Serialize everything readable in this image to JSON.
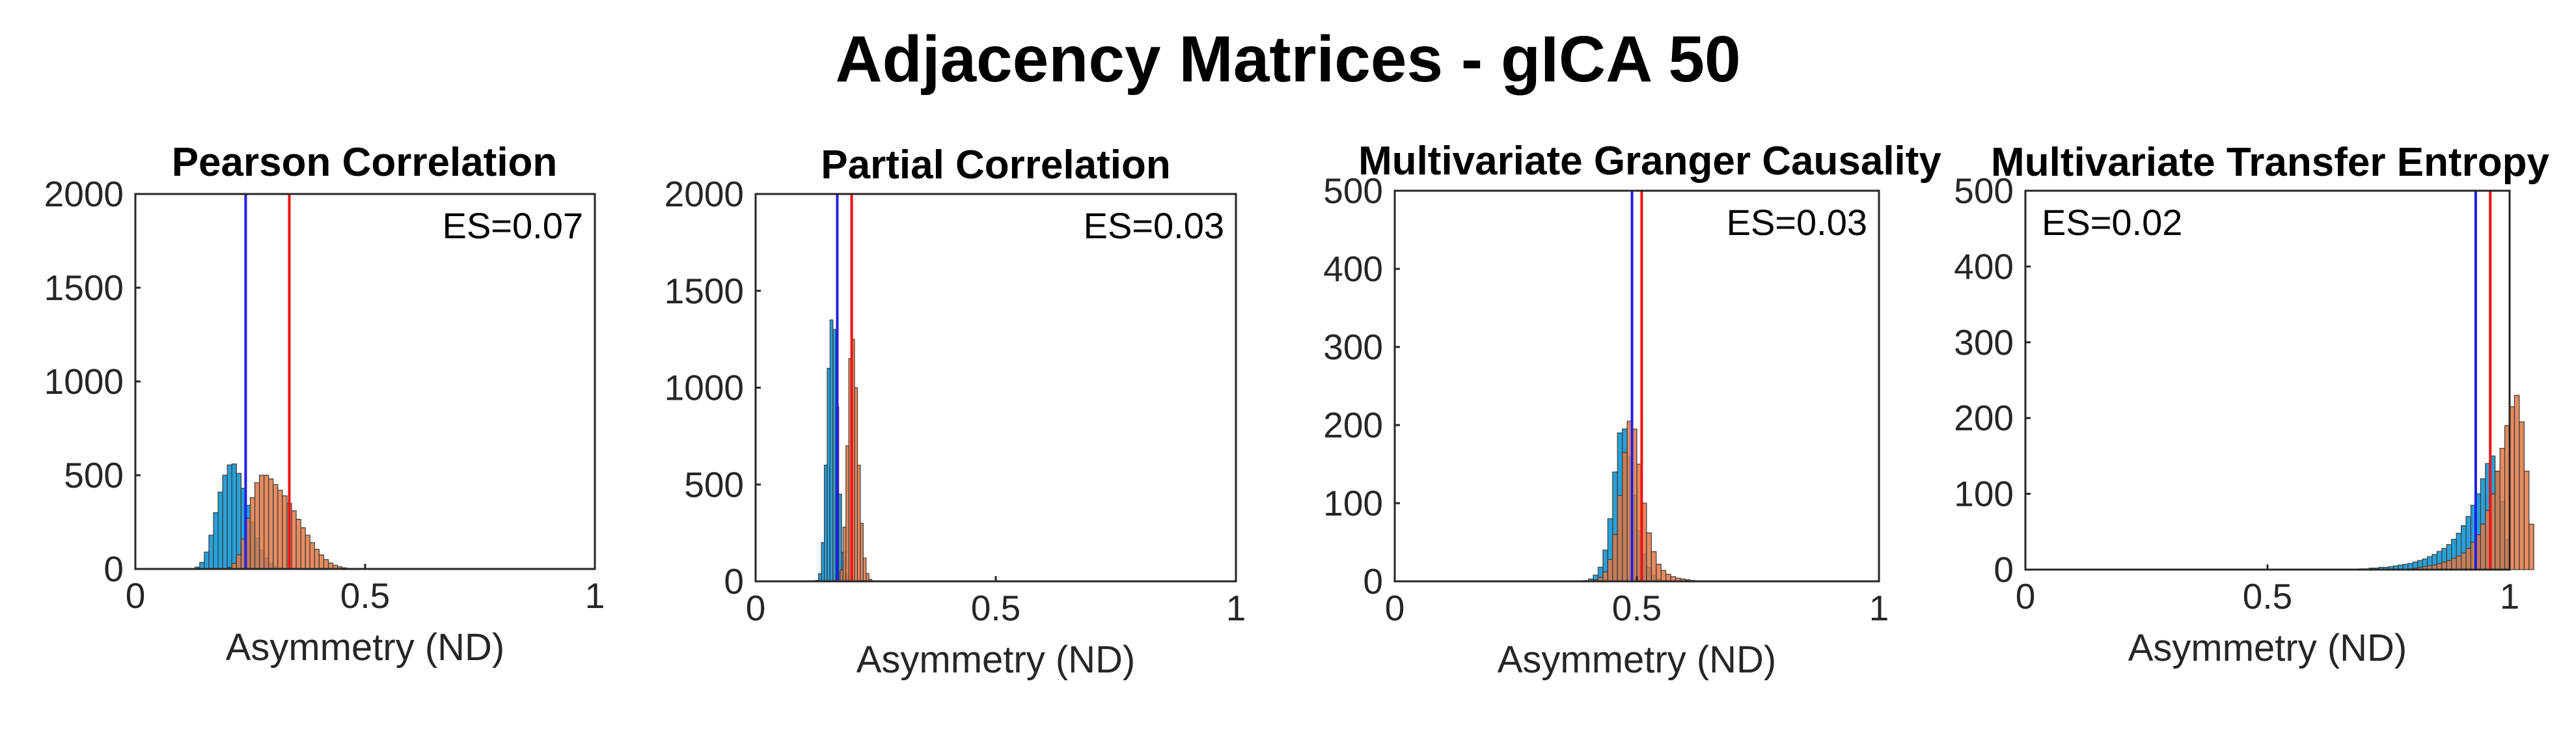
{
  "figure": {
    "title": "Adjacency Matrices   - gICA 50"
  },
  "colors": {
    "blue_bars": "#1d9bd6",
    "orange_bars": "#e07844",
    "blue_line": "#1f1fe6",
    "red_line": "#ee1111",
    "bar_edge": "#3a3a3a"
  },
  "chart_data": [
    {
      "type": "bar",
      "title": "Pearson Correlation",
      "xlabel": "Asymmetry (ND)",
      "ylabel": "",
      "xlim": [
        0,
        1
      ],
      "ylim": [
        0,
        2000
      ],
      "xticks": [
        0,
        0.5,
        1
      ],
      "xtick_labels": [
        "0",
        "0.5",
        "1"
      ],
      "yticks": [
        0,
        500,
        1000,
        1500,
        2000
      ],
      "ytick_labels": [
        "0",
        "500",
        "1000",
        "1500",
        "2000"
      ],
      "annotation": "ES=0.07",
      "annotation_position": "top-right",
      "bin_width": 0.01,
      "series": [
        {
          "name": "blue",
          "bin_start": 0.12,
          "values": [
            2,
            10,
            35,
            90,
            180,
            300,
            410,
            500,
            555,
            560,
            510,
            430,
            340,
            250,
            165,
            100,
            58,
            30,
            14,
            6,
            2
          ]
        },
        {
          "name": "orange",
          "bin_start": 0.2,
          "values": [
            8,
            30,
            75,
            160,
            270,
            380,
            460,
            500,
            500,
            480,
            450,
            420,
            390,
            350,
            310,
            265,
            220,
            180,
            140,
            105,
            75,
            50,
            32,
            20,
            12,
            6,
            3,
            1
          ]
        }
      ],
      "vlines": [
        {
          "name": "blue",
          "x": 0.24
        },
        {
          "name": "red",
          "x": 0.335
        }
      ]
    },
    {
      "type": "bar",
      "title": "Partial Correlation",
      "xlabel": "Asymmetry (ND)",
      "ylabel": "",
      "xlim": [
        0,
        1
      ],
      "ylim": [
        0,
        2000
      ],
      "xticks": [
        0,
        0.5,
        1
      ],
      "xtick_labels": [
        "0",
        "0.5",
        "1"
      ],
      "yticks": [
        0,
        500,
        1000,
        1500,
        2000
      ],
      "ytick_labels": [
        "0",
        "500",
        "1000",
        "1500",
        "2000"
      ],
      "annotation": "ES=0.03",
      "annotation_position": "top-right",
      "bin_width": 0.006,
      "series": [
        {
          "name": "blue",
          "bin_start": 0.125,
          "values": [
            5,
            40,
            200,
            600,
            1100,
            1350,
            1300,
            900,
            450,
            150,
            40,
            8
          ]
        },
        {
          "name": "orange",
          "bin_start": 0.17,
          "values": [
            10,
            60,
            280,
            700,
            1150,
            1250,
            1000,
            600,
            300,
            120,
            40,
            10
          ]
        }
      ],
      "vlines": [
        {
          "name": "blue",
          "x": 0.17
        },
        {
          "name": "red",
          "x": 0.2
        }
      ]
    },
    {
      "type": "bar",
      "title": "Multivariate Granger Causality",
      "xlabel": "Asymmetry (ND)",
      "ylabel": "",
      "xlim": [
        0,
        1
      ],
      "ylim": [
        0,
        500
      ],
      "xticks": [
        0,
        0.5,
        1
      ],
      "xtick_labels": [
        "0",
        "0.5",
        "1"
      ],
      "yticks": [
        0,
        100,
        200,
        300,
        400,
        500
      ],
      "ytick_labels": [
        "0",
        "100",
        "200",
        "300",
        "400",
        "500"
      ],
      "annotation": "ES=0.03",
      "annotation_position": "top-right",
      "bin_width": 0.01,
      "series": [
        {
          "name": "blue",
          "bin_start": 0.39,
          "values": [
            1,
            3,
            8,
            18,
            40,
            80,
            140,
            190,
            195,
            160,
            110,
            65,
            35,
            18,
            8,
            3,
            1
          ]
        },
        {
          "name": "orange",
          "bin_start": 0.41,
          "values": [
            2,
            5,
            12,
            28,
            60,
            110,
            165,
            205,
            195,
            150,
            100,
            62,
            38,
            22,
            14,
            9,
            6,
            4,
            3,
            2,
            1
          ]
        }
      ],
      "vlines": [
        {
          "name": "blue",
          "x": 0.49
        },
        {
          "name": "red",
          "x": 0.51
        }
      ]
    },
    {
      "type": "bar",
      "title": "Multivariate Transfer Entropy",
      "xlabel": "Asymmetry (ND)",
      "ylabel": "",
      "xlim": [
        0,
        1
      ],
      "ylim": [
        0,
        500
      ],
      "xticks": [
        0,
        0.5,
        1
      ],
      "xtick_labels": [
        "0",
        "0.5",
        "1"
      ],
      "yticks": [
        0,
        100,
        200,
        300,
        400,
        500
      ],
      "ytick_labels": [
        "0",
        "100",
        "200",
        "300",
        "400",
        "500"
      ],
      "annotation": "ES=0.02",
      "annotation_position": "top-left",
      "bin_width": 0.01,
      "series": [
        {
          "name": "blue",
          "bin_start": 0.69,
          "values": [
            1,
            1,
            2,
            2,
            3,
            3,
            4,
            5,
            6,
            7,
            8,
            10,
            12,
            14,
            17,
            20,
            24,
            28,
            33,
            40,
            48,
            58,
            70,
            85,
            100,
            120,
            140,
            150,
            130,
            90,
            40
          ]
        },
        {
          "name": "orange",
          "bin_start": 0.79,
          "values": [
            1,
            2,
            3,
            4,
            5,
            6,
            8,
            10,
            12,
            15,
            18,
            22,
            28,
            36,
            46,
            60,
            78,
            100,
            130,
            160,
            190,
            215,
            230,
            195,
            130,
            60
          ]
        }
      ],
      "vlines": [
        {
          "name": "blue",
          "x": 0.93
        },
        {
          "name": "red",
          "x": 0.96
        }
      ]
    }
  ]
}
